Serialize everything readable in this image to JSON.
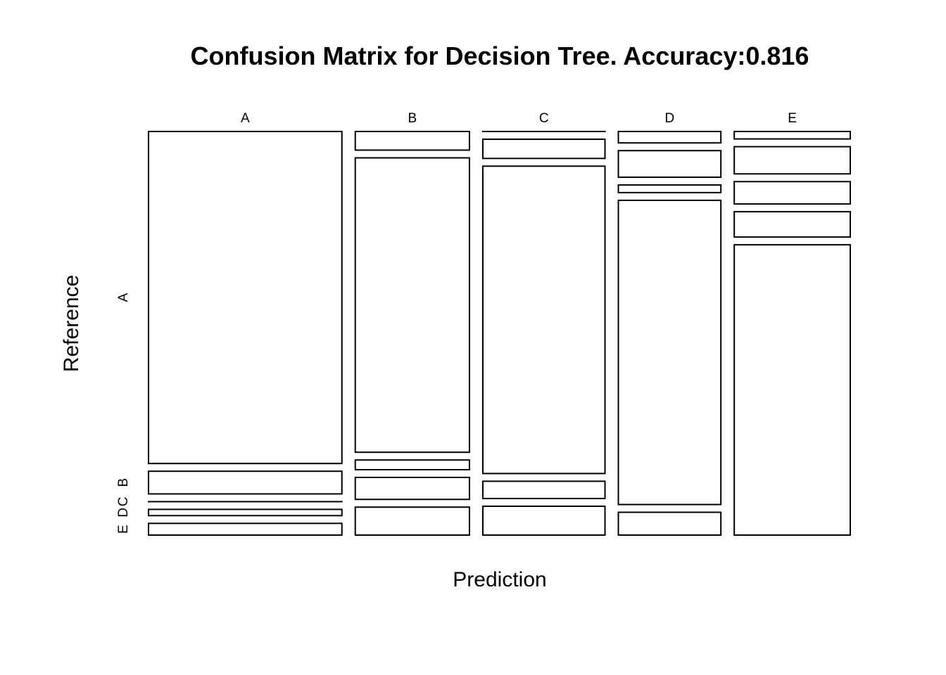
{
  "chart_data": {
    "type": "mosaic",
    "title": "Confusion Matrix for Decision Tree. Accuracy:0.816",
    "xlabel": "Prediction",
    "ylabel": "Reference",
    "prediction_levels": [
      "A",
      "B",
      "C",
      "D",
      "E"
    ],
    "reference_levels": [
      "A",
      "B",
      "C",
      "D",
      "E"
    ],
    "y_label_text": [
      "A",
      "B",
      "C",
      "D",
      "E"
    ],
    "accuracy": 0.816,
    "column_proportions": [
      0.315,
      0.186,
      0.199,
      0.167,
      0.189
    ],
    "cell_proportions": {
      "A": {
        "A": 0.85,
        "B": 0.058,
        "C": 0.0,
        "D": 0.016,
        "E": 0.03
      },
      "B": {
        "A": 0.05,
        "B": 0.79,
        "C": 0.026,
        "D": 0.059,
        "E": 0.075
      },
      "C": {
        "A": 0.0,
        "B": 0.05,
        "C": 0.8,
        "D": 0.045,
        "E": 0.075
      },
      "D": {
        "A": 0.03,
        "B": 0.07,
        "C": 0.02,
        "D": 0.8,
        "E": 0.06
      },
      "E": {
        "A": 0.02,
        "B": 0.073,
        "C": 0.06,
        "D": 0.068,
        "E": 0.779
      }
    }
  }
}
